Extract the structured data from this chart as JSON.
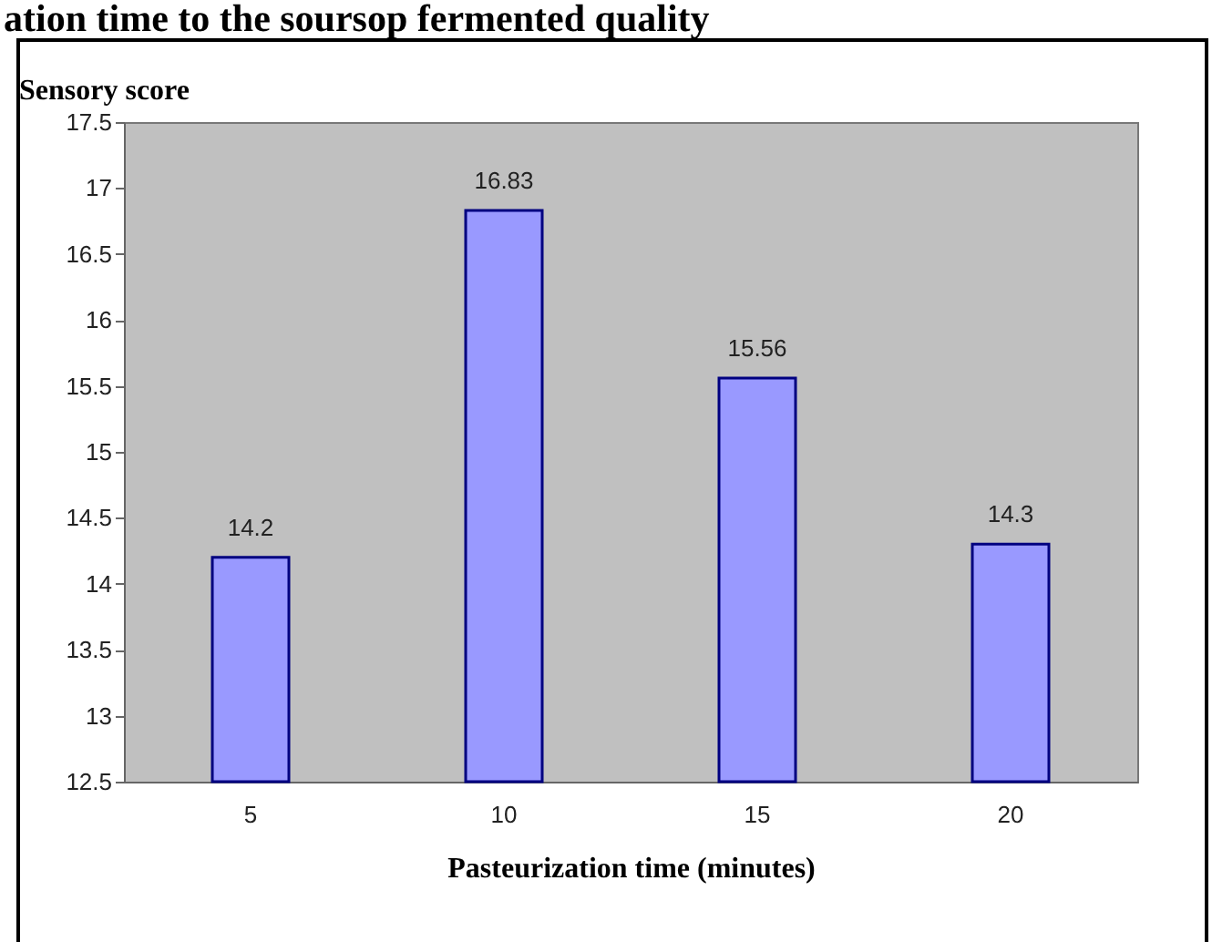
{
  "chart_data": {
    "type": "bar",
    "title": "ation time to the soursop fermented quality",
    "xlabel": "Pasteurization time (minutes)",
    "ylabel": "Sensory score",
    "categories": [
      "5",
      "10",
      "15",
      "20"
    ],
    "values": [
      14.2,
      16.83,
      15.56,
      14.3
    ],
    "color": "#9999ff",
    "ylim": [
      12.5,
      17.5
    ],
    "yticks": [
      12.5,
      13,
      13.5,
      14,
      14.5,
      15,
      15.5,
      16,
      16.5,
      17,
      17.5
    ],
    "grid": false,
    "data_labels": true
  }
}
